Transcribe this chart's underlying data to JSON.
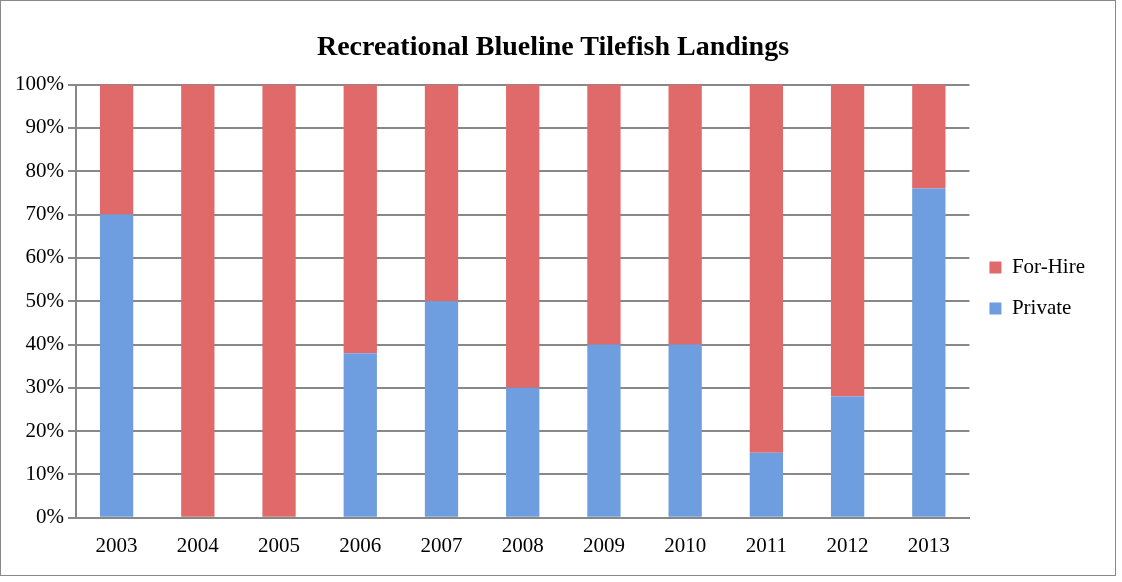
{
  "chart_data": {
    "type": "bar",
    "title": "Recreational Blueline Tilefish Landings",
    "categories": [
      "2003",
      "2004",
      "2005",
      "2006",
      "2007",
      "2008",
      "2009",
      "2010",
      "2011",
      "2012",
      "2013"
    ],
    "series": [
      {
        "name": "Private",
        "color": "#6f9ee0",
        "values": [
          70,
          0,
          0,
          38,
          50,
          30,
          40,
          40,
          15,
          28,
          76
        ]
      },
      {
        "name": "For-Hire",
        "color": "#e06a6a",
        "values": [
          30,
          100,
          100,
          62,
          50,
          70,
          60,
          60,
          85,
          72,
          24
        ]
      }
    ],
    "stacked": true,
    "ylim": [
      0,
      100
    ],
    "yticks": [
      {
        "value": 0,
        "label": "0%"
      },
      {
        "value": 10,
        "label": "10%"
      },
      {
        "value": 20,
        "label": "20%"
      },
      {
        "value": 30,
        "label": "30%"
      },
      {
        "value": 40,
        "label": "40%"
      },
      {
        "value": 50,
        "label": "50%"
      },
      {
        "value": 60,
        "label": "60%"
      },
      {
        "value": 70,
        "label": "70%"
      },
      {
        "value": 80,
        "label": "80%"
      },
      {
        "value": 90,
        "label": "90%"
      },
      {
        "value": 100,
        "label": "100%"
      }
    ],
    "grid": "y",
    "legend": "right"
  }
}
